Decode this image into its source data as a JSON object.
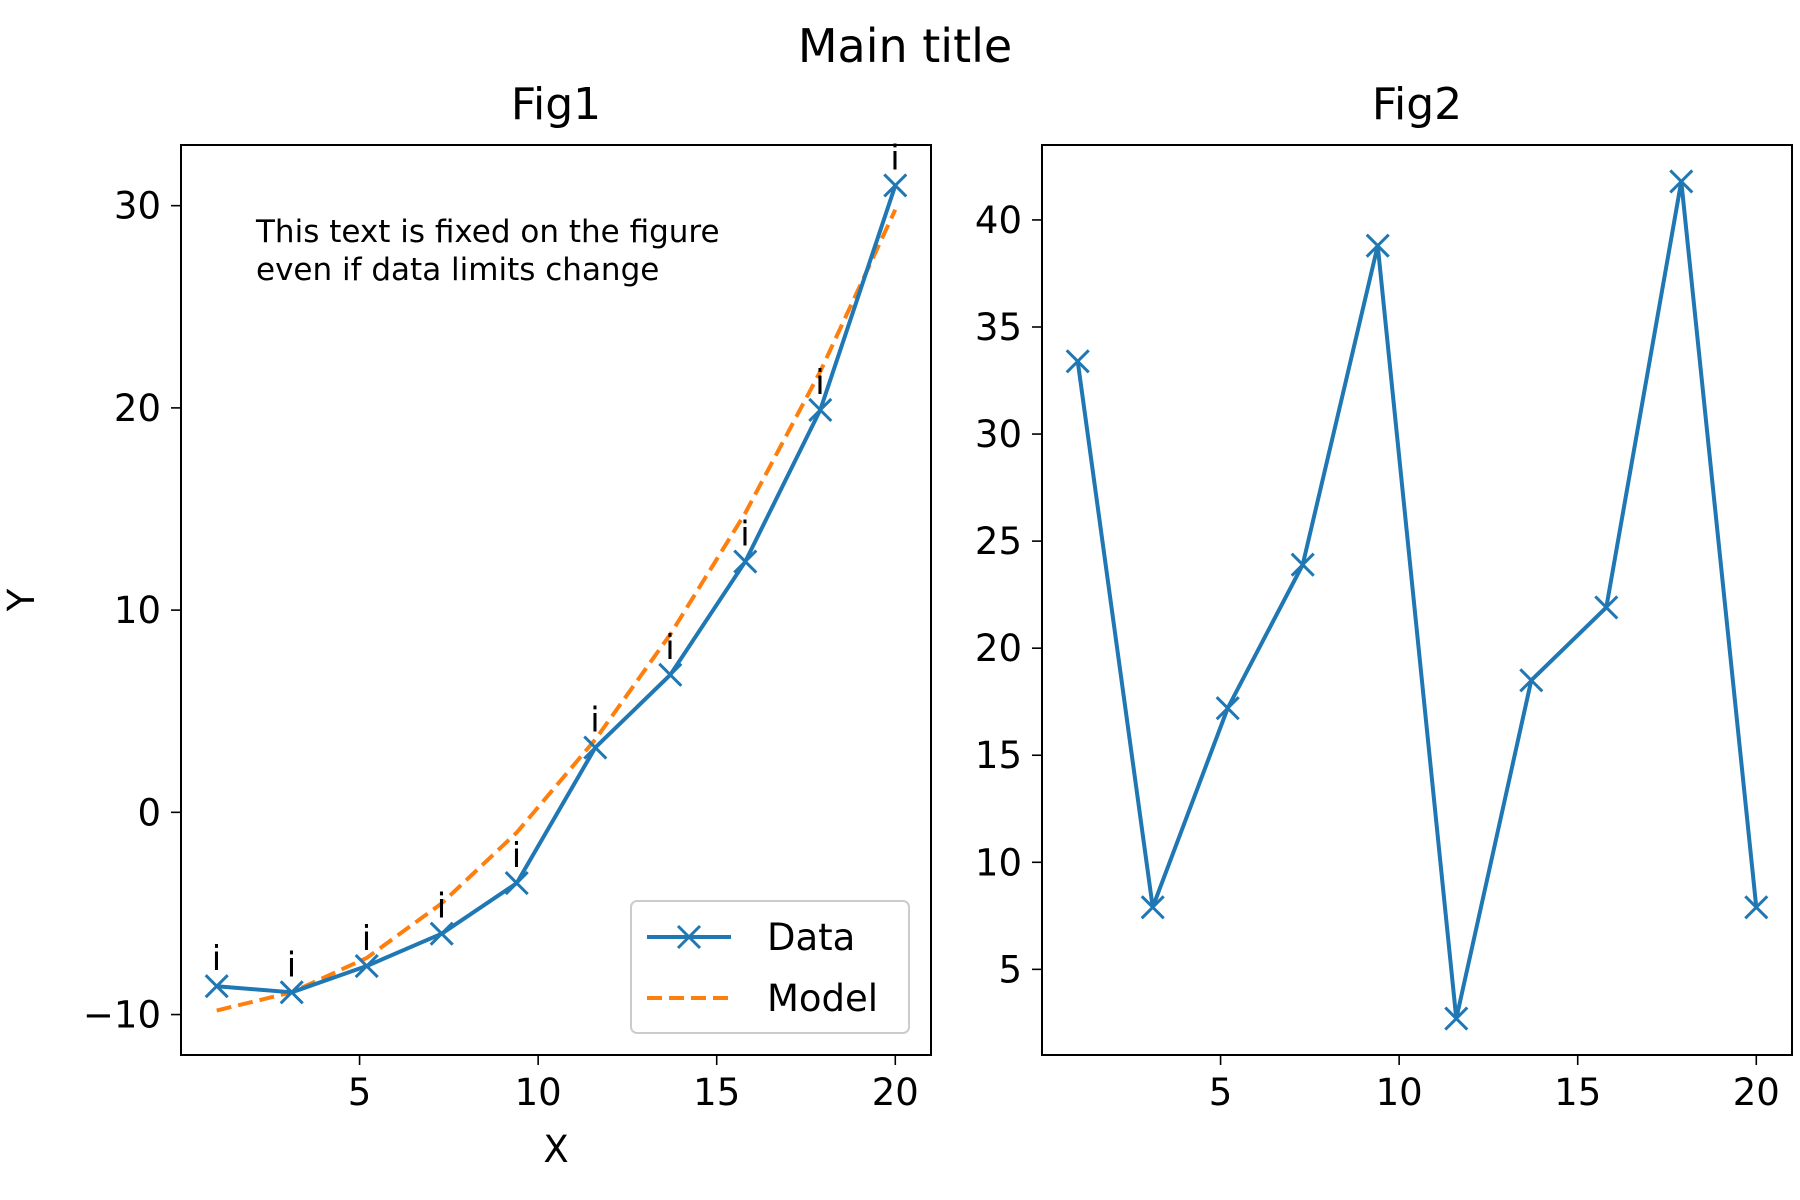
{
  "title": "Main title",
  "colors": {
    "data": "#1f77b4",
    "model": "#ff7f0e"
  },
  "chart_data": [
    {
      "type": "line",
      "title": "Fig1",
      "xlabel": "X",
      "ylabel": "Y",
      "xlim": [
        0,
        21
      ],
      "ylim": [
        -12,
        33
      ],
      "xticks": [
        5,
        10,
        15,
        20
      ],
      "yticks": [
        -10,
        0,
        10,
        20,
        30
      ],
      "ytick_labels": [
        "−10",
        "0",
        "10",
        "20",
        "30"
      ],
      "grid": false,
      "legend": "lower-right",
      "annotation": [
        "This text is fixed on the figure",
        "even if data limits change"
      ],
      "point_label": "i",
      "series": [
        {
          "name": "Data",
          "style": "solid-x-marker",
          "x": [
            1,
            3.1,
            5.2,
            7.3,
            9.4,
            11.6,
            13.7,
            15.8,
            17.9,
            20
          ],
          "y": [
            -8.6,
            -8.9,
            -7.6,
            -6.0,
            -3.5,
            3.2,
            6.8,
            12.4,
            19.9,
            31.0
          ]
        },
        {
          "name": "Model",
          "style": "dashed",
          "x": [
            1,
            3.1,
            5.2,
            7.3,
            9.4,
            11.6,
            13.7,
            15.8,
            17.9,
            20
          ],
          "y": [
            -9.8,
            -8.9,
            -7.2,
            -4.5,
            -1.0,
            3.6,
            8.8,
            14.8,
            21.8,
            29.8
          ]
        }
      ]
    },
    {
      "type": "line",
      "title": "Fig2",
      "xlabel": "",
      "ylabel": "",
      "xlim": [
        0,
        21
      ],
      "ylim": [
        1,
        43.5
      ],
      "xticks": [
        5,
        10,
        15,
        20
      ],
      "yticks": [
        5,
        10,
        15,
        20,
        25,
        30,
        35,
        40
      ],
      "ytick_labels": [
        "5",
        "10",
        "15",
        "20",
        "25",
        "30",
        "35",
        "40"
      ],
      "grid": false,
      "series": [
        {
          "style": "solid-x-marker",
          "x": [
            1,
            3.1,
            5.2,
            7.3,
            9.4,
            11.6,
            13.7,
            15.8,
            17.9,
            20
          ],
          "y": [
            33.4,
            7.9,
            17.2,
            23.9,
            38.8,
            2.7,
            18.5,
            21.9,
            41.8,
            7.9
          ]
        }
      ]
    }
  ]
}
